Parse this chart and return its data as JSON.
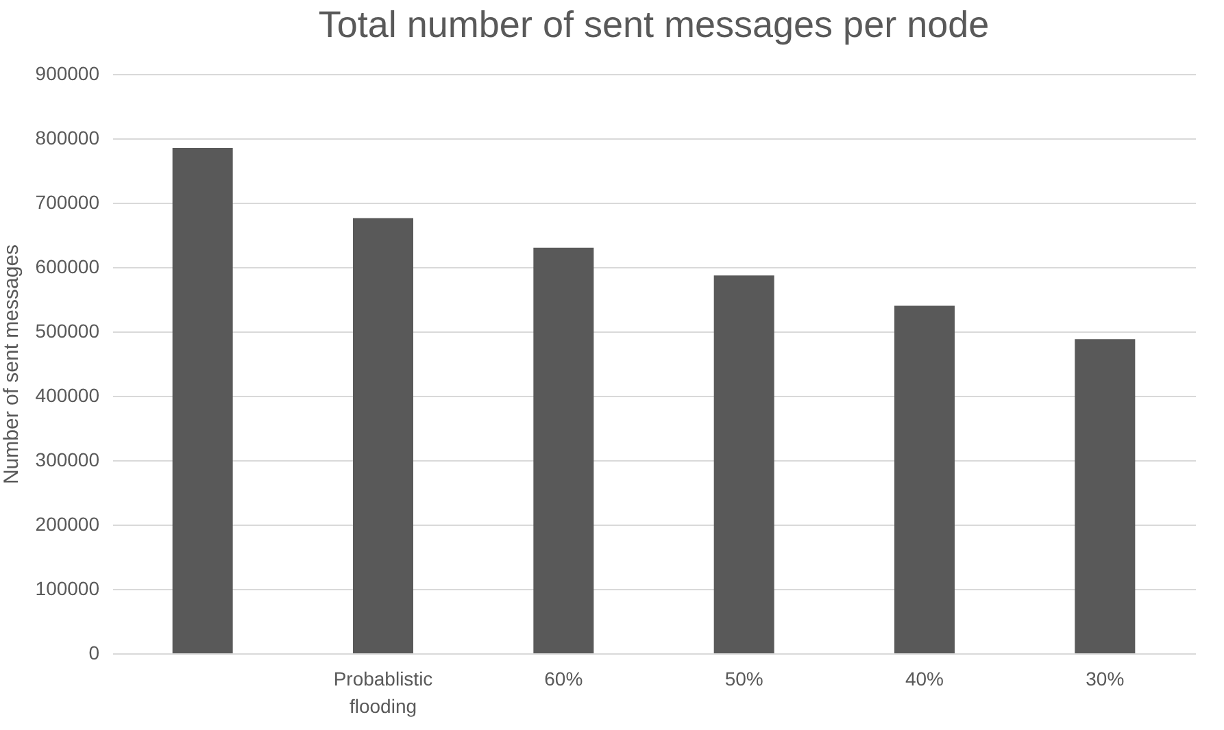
{
  "chart_data": {
    "type": "bar",
    "title": "Total number of sent messages per node",
    "ylabel": "Number of sent messages",
    "categories": [
      null,
      "Probablistic flooding",
      "60%",
      "50%",
      "40%",
      "30%"
    ],
    "values": [
      785000,
      676000,
      630000,
      587000,
      540000,
      488000
    ],
    "color": "#595959",
    "ylim": [
      0,
      900000
    ],
    "yticks": [
      0,
      100000,
      200000,
      300000,
      400000,
      500000,
      600000,
      700000,
      800000,
      900000
    ],
    "grid": "y"
  }
}
